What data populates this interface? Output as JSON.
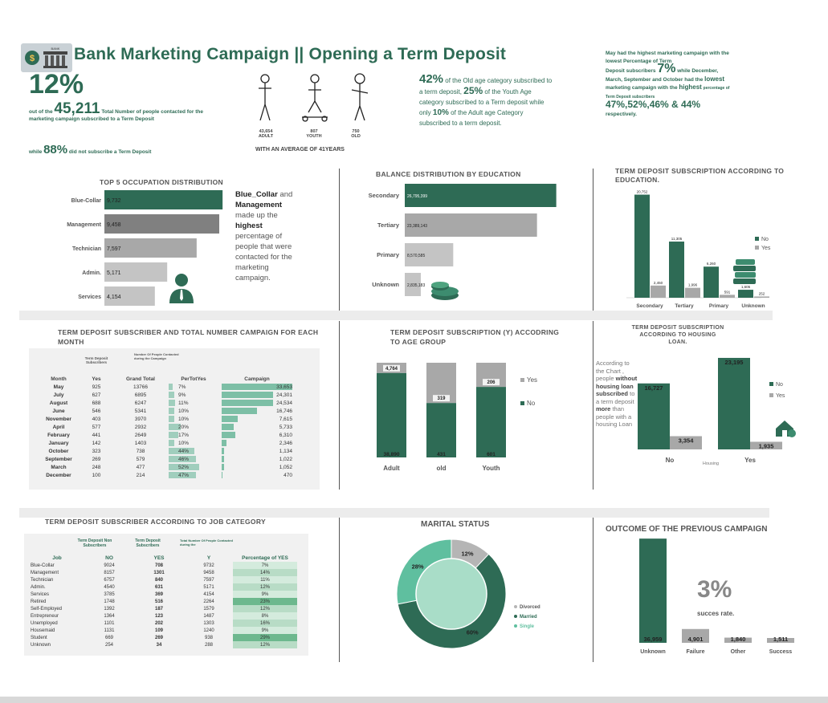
{
  "colors": {
    "green": "#2e6b55",
    "lightgreen": "#7dbfa6",
    "gray": "#a8a8a8",
    "darkgray": "#808080",
    "teal": "#5fbf9f"
  },
  "header": {
    "title": "Bank Marketing Campaign || Opening a Term Deposit",
    "logo_text": "BANK",
    "kpi_pct": "12%",
    "kpi_line1_pre": "out of  the",
    "kpi_total": "45,211",
    "kpi_line1_post": "Total Number of people contacted for the marketing campaign subscribed to a Term Deposit",
    "kpi_line2_pre": "while",
    "kpi_pct2": "88%",
    "kpi_line2_post": "did not subscribe a Term Deposit"
  },
  "age": {
    "groups": [
      {
        "value": "43,654",
        "label": "ADULT"
      },
      {
        "value": "807",
        "label": "YOUTH"
      },
      {
        "value": "750",
        "label": "OLD"
      }
    ],
    "average": "WITH AN AVERAGE OF  41YEARS",
    "p1": "42%",
    "t1": "of the Old age category subscribed to  a term deposit,",
    "p2": "25%",
    "t2": "of the Youth Age category subscribed to a Term deposit while only",
    "p3": "10%",
    "t3": "of the Adult age Category  subscribed to a term deposit."
  },
  "may": {
    "t1": "May had the highest marketing campaign with the lowest Percentage of Term",
    "t2a": "Deposit subscribers",
    "pct": "7%",
    "t2b": "while",
    "t3": "December, March, September and October had the",
    "lowest": "lowest",
    "t4": "marketing campaign with the",
    "highest": "highest",
    "t5": "percentage of Term Deposit subscribers",
    "pcts": "47%,52%,46% & 44%",
    "t6": "respectively."
  },
  "occupation": {
    "title": "TOP 5 OCCUPATION DISTRIBUTION",
    "note_a": "Blue_Collar",
    "note_b": "and",
    "note_c": "Management",
    "note_d": "made up the",
    "note_e": "highest",
    "note_f": "percentage of people that were contacted for the marketing campaign."
  },
  "balance": {
    "title": "BALANCE  DISTRIBUTION BY EDUCATION"
  },
  "edu": {
    "title": "TERM DEPOSIT SUBSCRIPTION ACCORDING TO EDUCATION."
  },
  "month": {
    "title": "TERM DEPOSIT SUBSCRIBER  AND TOTAL NUMBER CAMPAIGN FOR EACH MONTH",
    "h_sub": "Term Deposit Subscribers",
    "h_num": "Number Of People Contacted during the Campaign",
    "cols": [
      "Month",
      "Yes",
      "Grand Total",
      "PerTotYes",
      "Campaign"
    ],
    "rows": [
      [
        "May",
        "925",
        "13766",
        "7%",
        "33,653"
      ],
      [
        "July",
        "627",
        "6895",
        "9%",
        "24,301"
      ],
      [
        "August",
        "688",
        "6247",
        "11%",
        "24,534"
      ],
      [
        "June",
        "546",
        "5341",
        "10%",
        "16,746"
      ],
      [
        "November",
        "403",
        "3970",
        "10%",
        "7,615"
      ],
      [
        "April",
        "577",
        "2932",
        "20%",
        "5,733"
      ],
      [
        "February",
        "441",
        "2649",
        "17%",
        "6,310"
      ],
      [
        "January",
        "142",
        "1403",
        "10%",
        "2,346"
      ],
      [
        "October",
        "323",
        "738",
        "44%",
        "1,134"
      ],
      [
        "September",
        "269",
        "579",
        "46%",
        "1,022"
      ],
      [
        "March",
        "248",
        "477",
        "52%",
        "1,052"
      ],
      [
        "December",
        "100",
        "214",
        "47%",
        "470"
      ]
    ]
  },
  "agegroup": {
    "title": "TERM DEPOSIT SUBSCRIPTION (Y) ACCODRING TO  AGE GROUP"
  },
  "housing": {
    "title": "TERM DEPOSIT SUBSCRIPTION ACCORDING TO HOUSING LOAN.",
    "n1": "According to the Chart , people",
    "n2": "without housing loan subscribed",
    "n3": "to a term deposit",
    "n4": "more",
    "n5": "than people with a housing Loan",
    "axis": "Housing"
  },
  "job": {
    "title": "TERM DEPOSIT SUBSCRIBER  ACCORDING TO JOB CATEGORY",
    "h_non": "Term Deposit Non Subscribers",
    "h_sub": "Term Deposit Subscribers",
    "h_tot": "Total Number Of People Contacted during the",
    "cols": [
      "Job",
      "NO",
      "YES",
      "Y",
      "Percentage of YES"
    ],
    "rows": [
      [
        "Blue-Collar",
        "9024",
        "708",
        "9732",
        "7%"
      ],
      [
        "Management",
        "8157",
        "1301",
        "9458",
        "14%"
      ],
      [
        "Technician",
        "6757",
        "840",
        "7597",
        "11%"
      ],
      [
        "Admin.",
        "4540",
        "631",
        "5171",
        "12%"
      ],
      [
        "Services",
        "3785",
        "369",
        "4154",
        "9%"
      ],
      [
        "Retired",
        "1748",
        "516",
        "2264",
        "23%"
      ],
      [
        "Self-Employed",
        "1392",
        "187",
        "1579",
        "12%"
      ],
      [
        "Entrepreneur",
        "1364",
        "123",
        "1487",
        "8%"
      ],
      [
        "Unemployed",
        "1101",
        "202",
        "1303",
        "16%"
      ],
      [
        "Housemaid",
        "1131",
        "109",
        "1240",
        "9%"
      ],
      [
        "Student",
        "669",
        "269",
        "938",
        "29%"
      ],
      [
        "Unknown",
        "254",
        "34",
        "288",
        "12%"
      ]
    ]
  },
  "marital": {
    "title": "MARITAL STATUS"
  },
  "outcome": {
    "title": "OUTCOME OF THE PREVIOUS CAMPAIGN",
    "big": "3%",
    "sub": "succes rate."
  },
  "chart_data": [
    {
      "type": "bar",
      "title": "TOP 5 OCCUPATION DISTRIBUTION",
      "orientation": "horizontal",
      "categories": [
        "Blue-Collar",
        "Management",
        "Technician",
        "Admin.",
        "Services"
      ],
      "values": [
        9732,
        9458,
        7597,
        5171,
        4154
      ],
      "labels": [
        "9,732",
        "9,458",
        "7,597",
        "5,171",
        "4,154"
      ]
    },
    {
      "type": "bar",
      "title": "BALANCE  DISTRIBUTION BY EDUCATION",
      "orientation": "horizontal",
      "categories": [
        "Secondary",
        "Tertiary",
        "Primary",
        "Unknown"
      ],
      "values": [
        26795399,
        23389143,
        8570585,
        2835183
      ],
      "labels": [
        "26,795,399",
        "23,389,143",
        "8,570,585",
        "2,835,183"
      ]
    },
    {
      "type": "bar",
      "title": "TERM DEPOSIT SUBSCRIPTION ACCORDING TO EDUCATION.",
      "categories": [
        "Secondary",
        "Tertiary",
        "Primary",
        "Unknown"
      ],
      "series": [
        {
          "name": "No",
          "values": [
            20752,
            11305,
            6260,
            1605
          ],
          "labels": [
            "20,752",
            "11,305",
            "6,260",
            "1,605"
          ]
        },
        {
          "name": "Yes",
          "values": [
            2450,
            1996,
            591,
            252
          ],
          "labels": [
            "2,450",
            "1,996",
            "591",
            "252"
          ]
        }
      ],
      "legend": "right"
    },
    {
      "type": "bar",
      "title": "Campaign",
      "orientation": "horizontal",
      "embedded_in": "month-table",
      "categories": [
        "May",
        "July",
        "August",
        "June",
        "November",
        "April",
        "February",
        "January",
        "October",
        "September",
        "March",
        "December"
      ],
      "values": [
        33653,
        24301,
        24534,
        16746,
        7615,
        5733,
        6310,
        2346,
        1134,
        1022,
        1052,
        470
      ]
    },
    {
      "type": "bar",
      "title": "TERM DEPOSIT SUBSCRIPTION (Y) ACCODRING TO  AGE GROUP",
      "stacked": true,
      "categories": [
        "Adult",
        "old",
        "Youth"
      ],
      "series": [
        {
          "name": "No",
          "values": [
            38890,
            431,
            601
          ]
        },
        {
          "name": "Yes",
          "values": [
            4764,
            319,
            206
          ]
        }
      ],
      "labels_no": [
        "38,890",
        "431",
        "601"
      ],
      "labels_yes": [
        "4,764",
        "319",
        "206"
      ],
      "legend": "right"
    },
    {
      "type": "bar",
      "title": "TERM DEPOSIT SUBSCRIPTION ACCORDING TO HOUSING LOAN.",
      "categories": [
        "No",
        "Yes"
      ],
      "xlabel": "Housing",
      "series": [
        {
          "name": "No",
          "values": [
            16727,
            23195
          ],
          "labels": [
            "16,727",
            "23,195"
          ]
        },
        {
          "name": "Yes",
          "values": [
            3354,
            1935
          ],
          "labels": [
            "3,354",
            "1,935"
          ]
        }
      ],
      "legend": "right"
    },
    {
      "type": "pie",
      "title": "MARITAL STATUS",
      "donut": true,
      "slices": [
        {
          "name": "Divorced",
          "value": 12,
          "label": "12%"
        },
        {
          "name": "Married",
          "value": 60,
          "label": "60%"
        },
        {
          "name": "Single",
          "value": 28,
          "label": "28%"
        }
      ],
      "legend": "right"
    },
    {
      "type": "bar",
      "title": "OUTCOME OF THE PREVIOUS CAMPAIGN",
      "categories": [
        "Unknown",
        "Failure",
        "Other",
        "Success"
      ],
      "values": [
        36959,
        4901,
        1840,
        1511
      ],
      "labels": [
        "36,959",
        "4,901",
        "1,840",
        "1,511"
      ]
    }
  ]
}
